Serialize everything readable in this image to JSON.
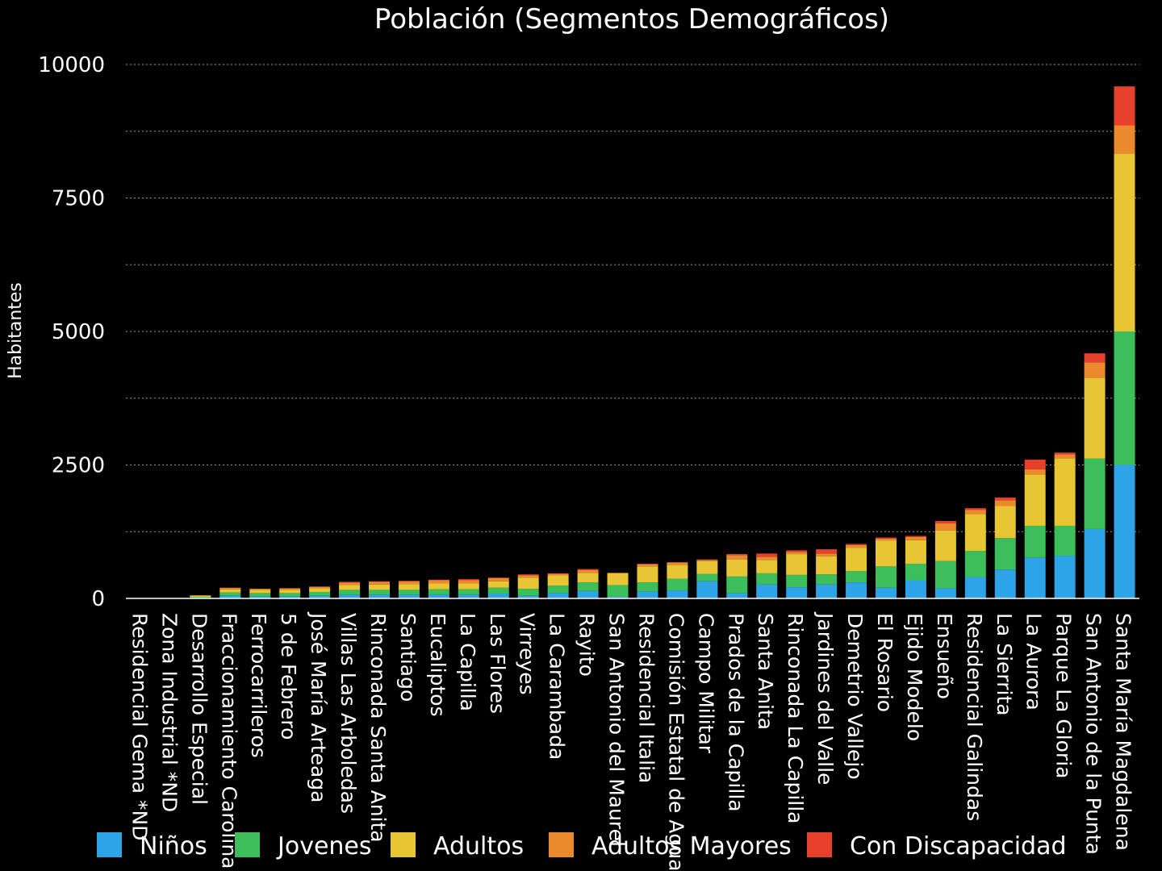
{
  "chart_data": {
    "type": "bar",
    "stacked": true,
    "title": "Población (Segmentos Demográficos)",
    "ylabel": "Habitantes",
    "xlabel": "",
    "ylim": [
      0,
      10000
    ],
    "yticks": [
      0,
      2500,
      5000,
      7500,
      10000
    ],
    "grid": true,
    "legend_position": "bottom",
    "categories": [
      "Residencial Gema *ND",
      "Zona Industrial *ND",
      "Desarrollo Especial",
      "Fraccionamiento Carolina",
      "Ferrocarrileros",
      "5 de Febrero",
      "José María Arteaga",
      "Villas Las Arboledas",
      "Rinconada Santa Anita",
      "Santiago",
      "Eucaliptos",
      "La Capilla",
      "Las Flores",
      "Virreyes",
      "La Carambada",
      "Rayito",
      "San Antonio del Maurel",
      "Residencial Italia",
      "Comisión Estatal de Aguas",
      "Campo Militar",
      "Prados de la Capilla",
      "Santa Anita",
      "Rinconada La Capilla",
      "Jardines del Valle",
      "Demetrio Vallejo",
      "El Rosario",
      "Ejido Modelo",
      "Ensueño",
      "Residencial Galindas",
      "La Sierrita",
      "La Aurora",
      "Parque La Gloria",
      "San Antonio de la Punta",
      "Santa María Magdalena"
    ],
    "series": [
      {
        "name": "Niños",
        "color": "#2fa3e8",
        "values": [
          0,
          0,
          10,
          50,
          40,
          40,
          50,
          70,
          70,
          70,
          70,
          70,
          90,
          50,
          100,
          140,
          30,
          130,
          150,
          320,
          100,
          260,
          210,
          260,
          300,
          200,
          340,
          190,
          400,
          540,
          760,
          800,
          1300,
          2500
        ]
      },
      {
        "name": "Jovenes",
        "color": "#3cbf5a",
        "values": [
          0,
          0,
          20,
          60,
          60,
          60,
          70,
          90,
          90,
          90,
          100,
          100,
          110,
          130,
          140,
          160,
          220,
          170,
          220,
          140,
          310,
          210,
          230,
          190,
          210,
          400,
          310,
          510,
          490,
          590,
          600,
          560,
          1320,
          2500
        ]
      },
      {
        "name": "Adultos",
        "color": "#e8c532",
        "values": [
          0,
          0,
          20,
          60,
          60,
          60,
          70,
          90,
          100,
          110,
          110,
          110,
          120,
          210,
          190,
          180,
          220,
          300,
          260,
          240,
          320,
          250,
          390,
          340,
          440,
          480,
          440,
          570,
          690,
          600,
          960,
          1260,
          1510,
          3330
        ]
      },
      {
        "name": "Adultos Mayores",
        "color": "#ea8a2c",
        "values": [
          0,
          0,
          10,
          30,
          20,
          30,
          30,
          50,
          50,
          50,
          60,
          60,
          60,
          40,
          30,
          50,
          10,
          40,
          40,
          20,
          80,
          60,
          40,
          50,
          50,
          40,
          60,
          140,
          80,
          110,
          100,
          80,
          290,
          530
        ]
      },
      {
        "name": "Con Discapacidad",
        "color": "#e8412b",
        "values": [
          0,
          0,
          0,
          0,
          0,
          0,
          0,
          10,
          10,
          10,
          10,
          20,
          10,
          20,
          10,
          20,
          0,
          10,
          10,
          10,
          20,
          60,
          30,
          80,
          20,
          20,
          20,
          40,
          30,
          50,
          180,
          30,
          170,
          730
        ]
      }
    ]
  }
}
